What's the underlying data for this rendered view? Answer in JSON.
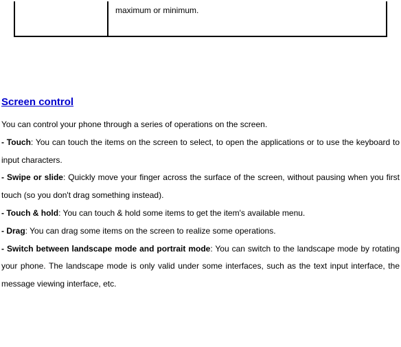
{
  "table": {
    "cell2": "maximum or minimum."
  },
  "heading": "Screen control",
  "intro": "You can control your phone through a series of operations on the screen.",
  "items": {
    "touch_label": "- Touch",
    "touch_text": ": You can touch the items on the screen to select, to open the applications or to use the keyboard to input characters.",
    "swipe_label": "- Swipe or slide",
    "swipe_text": ": Quickly move your finger across the surface of the screen, without pausing when you first touch (so you don't drag something instead).",
    "hold_label": "- Touch & hold",
    "hold_text": ": You can touch & hold some items to get the item's available menu.",
    "drag_label": "- Drag",
    "drag_text": ": You can drag some items on the screen to realize some operations.",
    "switch_label": "- Switch between landscape mode and portrait mode",
    "switch_text": ": You can switch to the landscape mode by rotating your phone. The landscape mode is only valid under some interfaces, such as the text input interface, the message viewing interface, etc."
  }
}
